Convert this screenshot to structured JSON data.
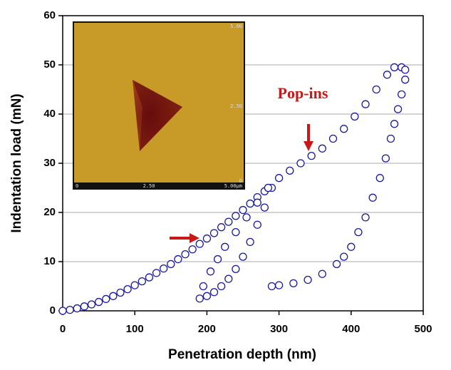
{
  "chart_data": {
    "type": "scatter",
    "x_label": "Penetration depth (nm)",
    "y_label": "Indentation load (mN)",
    "annotation": "Pop-ins",
    "inset_labels": {
      "right": [
        "5.00",
        "2.50",
        "0"
      ],
      "bottom": [
        "0",
        "2.50",
        "5.00µm"
      ]
    },
    "xlim": [
      0,
      500
    ],
    "xticks": [
      0,
      100,
      200,
      300,
      400,
      500
    ],
    "ylim": [
      0,
      60
    ],
    "yticks": [
      0,
      10,
      20,
      30,
      40,
      50,
      60
    ],
    "grid": true,
    "color": "#1a1aa0",
    "x": [
      0,
      10,
      20,
      30,
      40,
      50,
      60,
      70,
      80,
      90,
      100,
      110,
      120,
      130,
      140,
      150,
      160,
      170,
      180,
      190,
      200,
      210,
      220,
      230,
      240,
      250,
      260,
      270,
      280,
      285,
      290,
      280,
      270,
      260,
      250,
      240,
      230,
      220,
      210,
      200,
      190,
      195,
      205,
      215,
      225,
      240,
      255,
      270,
      285,
      300,
      315,
      330,
      345,
      360,
      375,
      390,
      405,
      420,
      435,
      450,
      460,
      470,
      475,
      475,
      470,
      465,
      460,
      455,
      448,
      440,
      430,
      420,
      410,
      400,
      390,
      380,
      360,
      340,
      320,
      300,
      290
    ],
    "values": [
      0,
      0.2,
      0.5,
      0.9,
      1.3,
      1.8,
      2.4,
      3.0,
      3.7,
      4.4,
      5.2,
      6.0,
      6.8,
      7.7,
      8.6,
      9.5,
      10.5,
      11.5,
      12.5,
      13.6,
      14.7,
      15.8,
      17.0,
      18.1,
      19.3,
      20.5,
      21.8,
      23.1,
      24.3,
      25,
      25,
      21,
      17.5,
      14,
      11,
      8.5,
      6.5,
      5,
      3.8,
      3,
      2.5,
      5,
      8,
      10.5,
      13,
      16,
      19,
      22,
      25,
      27,
      28.5,
      30,
      31.5,
      33,
      35,
      37,
      39.5,
      42,
      45,
      48,
      49.5,
      49.5,
      49,
      47,
      44,
      41,
      38,
      35,
      31,
      27,
      23,
      19,
      16,
      13,
      11,
      9.5,
      7.5,
      6.3,
      5.6,
      5.2,
      5
    ]
  }
}
